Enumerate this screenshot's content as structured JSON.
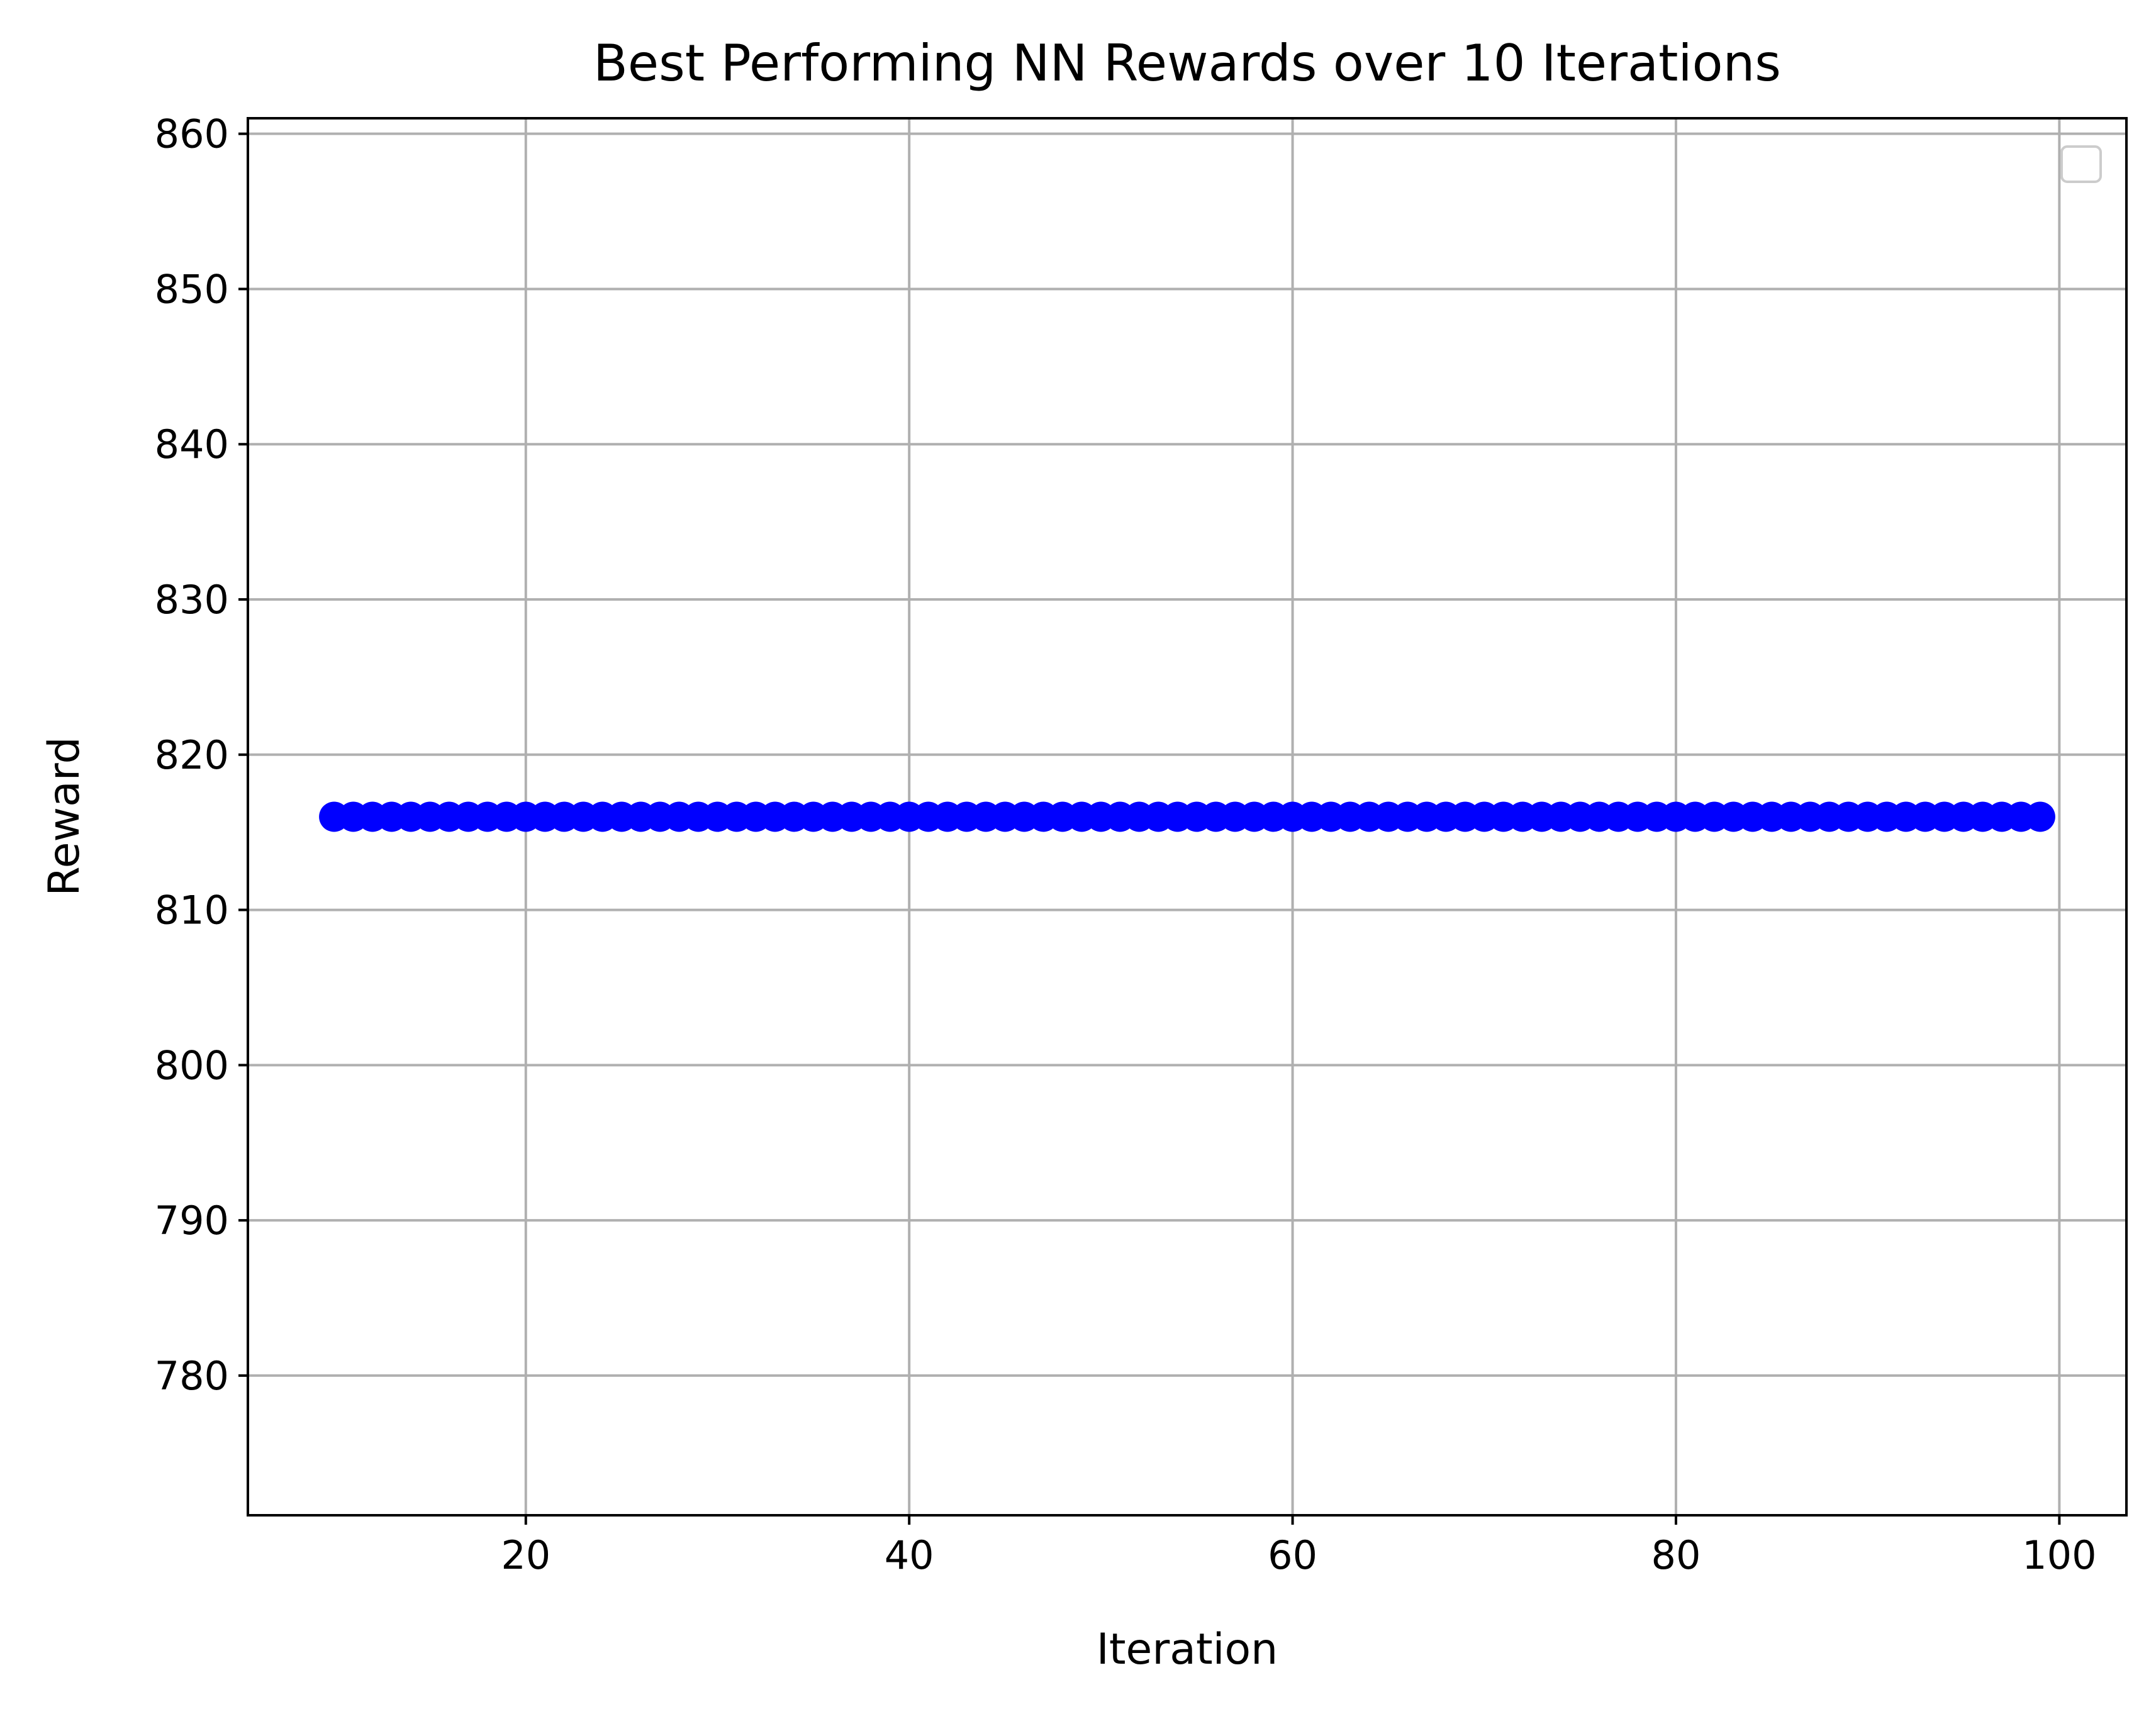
{
  "chart_data": {
    "type": "scatter",
    "title": "Best Performing NN Rewards over 10 Iterations",
    "xlabel": "Iteration",
    "ylabel": "Reward",
    "xlim": [
      5.5,
      103.5
    ],
    "ylim": [
      771,
      861
    ],
    "xticks": [
      20,
      40,
      60,
      80,
      100
    ],
    "yticks": [
      780,
      790,
      800,
      810,
      820,
      830,
      840,
      850,
      860
    ],
    "grid": true,
    "legend": {
      "placement": "top-right",
      "entries": []
    },
    "series": [
      {
        "color": "#0000ff",
        "marker": "circle",
        "x": [
          10,
          11,
          12,
          13,
          14,
          15,
          16,
          17,
          18,
          19,
          20,
          21,
          22,
          23,
          24,
          25,
          26,
          27,
          28,
          29,
          30,
          31,
          32,
          33,
          34,
          35,
          36,
          37,
          38,
          39,
          40,
          41,
          42,
          43,
          44,
          45,
          46,
          47,
          48,
          49,
          50,
          51,
          52,
          53,
          54,
          55,
          56,
          57,
          58,
          59,
          60,
          61,
          62,
          63,
          64,
          65,
          66,
          67,
          68,
          69,
          70,
          71,
          72,
          73,
          74,
          75,
          76,
          77,
          78,
          79,
          80,
          81,
          82,
          83,
          84,
          85,
          86,
          87,
          88,
          89,
          90,
          91,
          92,
          93,
          94,
          95,
          96,
          97,
          98,
          99
        ],
        "y": 816
      }
    ]
  }
}
